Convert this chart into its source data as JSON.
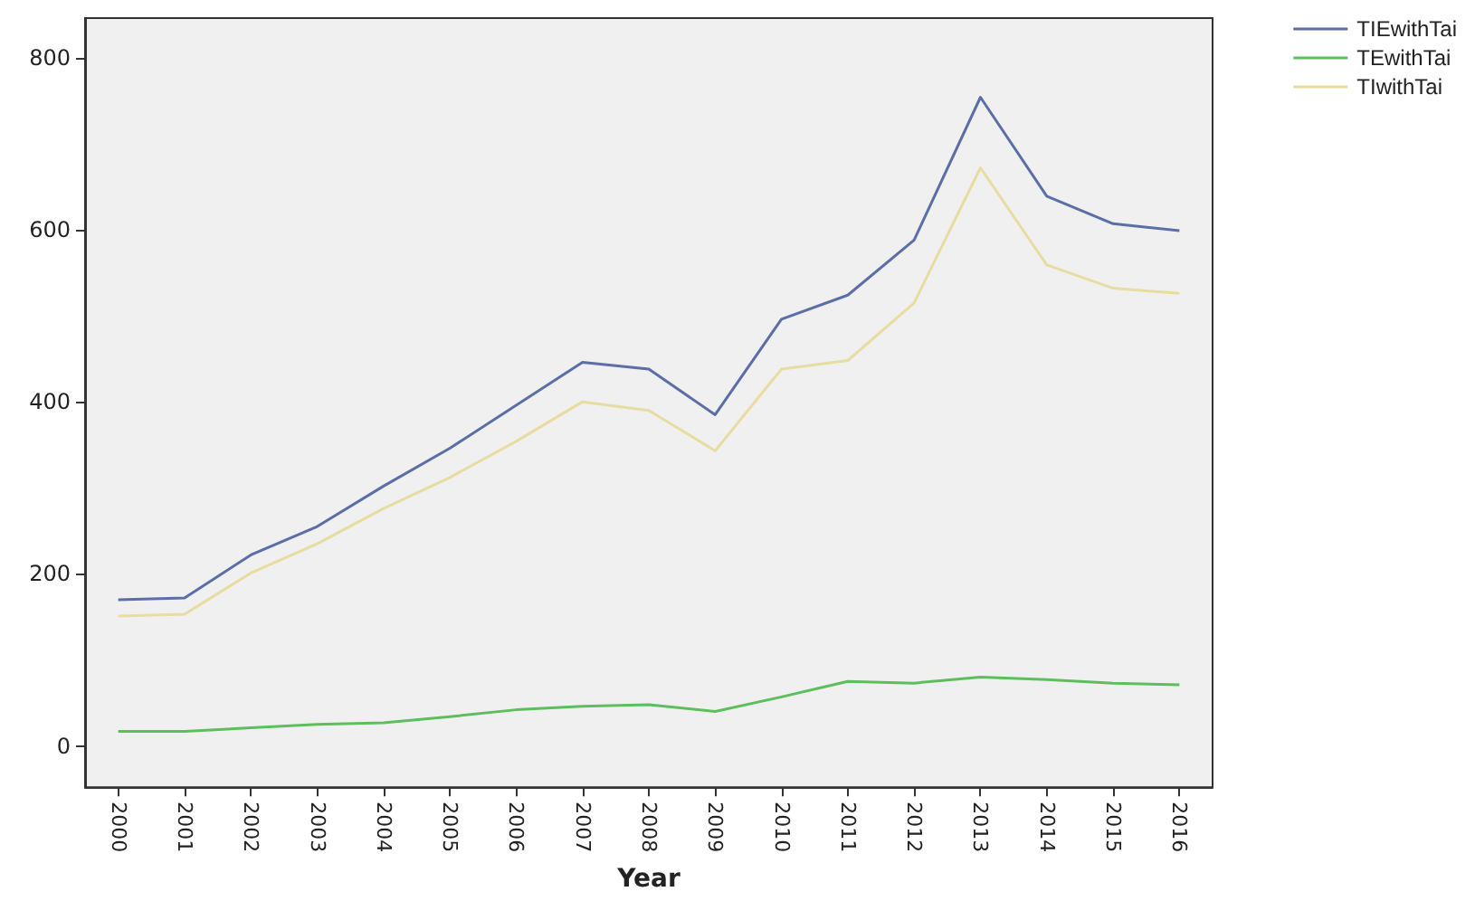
{
  "chart_data": {
    "type": "line",
    "xlabel": "Year",
    "categories": [
      "2000",
      "2001",
      "2002",
      "2003",
      "2004",
      "2005",
      "2006",
      "2007",
      "2008",
      "2009",
      "2010",
      "2011",
      "2012",
      "2013",
      "2014",
      "2015",
      "2016"
    ],
    "series": [
      {
        "name": "TIEwithTai",
        "color": "#5b6fa6",
        "values": [
          170,
          172,
          222,
          255,
          302,
          346,
          396,
          446,
          438,
          385,
          496,
          524,
          588,
          754,
          639,
          607,
          599
        ]
      },
      {
        "name": "TEwithTai",
        "color": "#5cbf5c",
        "values": [
          17,
          17,
          21,
          25,
          27,
          34,
          42,
          46,
          48,
          40,
          57,
          75,
          73,
          80,
          77,
          73,
          71
        ]
      },
      {
        "name": "TIwithTai",
        "color": "#e8dca0",
        "values": [
          151,
          153,
          201,
          235,
          276,
          312,
          354,
          400,
          390,
          343,
          438,
          448,
          515,
          672,
          559,
          532,
          526
        ]
      }
    ],
    "ylim": [
      -48,
      846
    ],
    "yticks": [
      0,
      200,
      400,
      600,
      800
    ],
    "grid": false,
    "legend": "top right",
    "marker": "none",
    "line_style": "solid"
  }
}
